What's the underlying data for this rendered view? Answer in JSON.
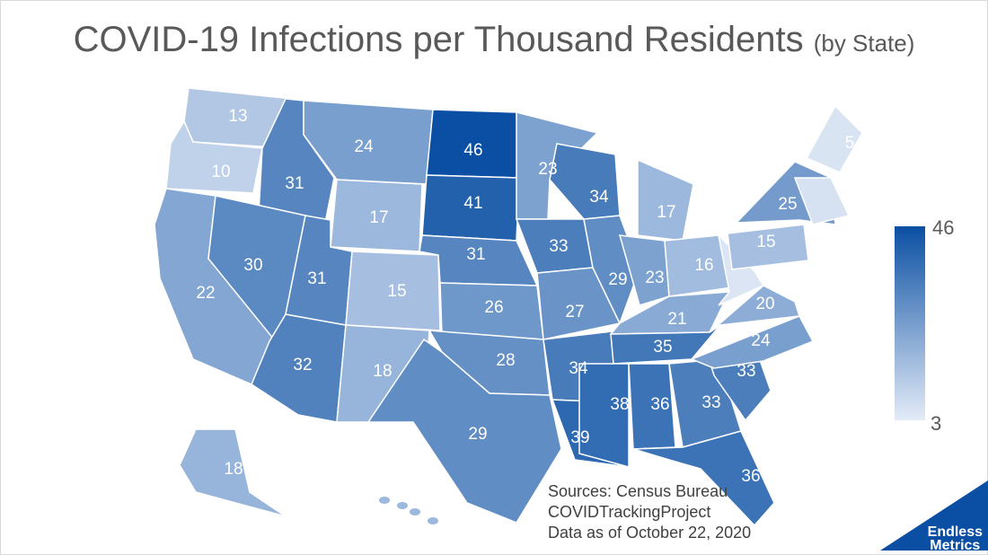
{
  "title": {
    "main": "COVID-19 Infections per Thousand Residents",
    "sub": "(by State)"
  },
  "legend": {
    "max": "46",
    "min": "3",
    "max_color": "#0a4fa3",
    "min_color": "#e3ebf7"
  },
  "sources": {
    "line1": "Sources: Census Bureau",
    "line2": "COVIDTrackingProject",
    "line3": "Data as of October 22, 2020"
  },
  "brand": {
    "line1": "Endless",
    "line2": "Metrics",
    "color": "#0a4fa3"
  },
  "chart_data": {
    "type": "choropleth",
    "title": "COVID-19 Infections per Thousand Residents (by State)",
    "unit": "infections per thousand residents",
    "scale": {
      "min": 3,
      "max": 46
    },
    "states": [
      {
        "state": "WA",
        "value": 13
      },
      {
        "state": "OR",
        "value": 10
      },
      {
        "state": "CA",
        "value": 22
      },
      {
        "state": "ID",
        "value": 31
      },
      {
        "state": "NV",
        "value": 30
      },
      {
        "state": "MT",
        "value": 24
      },
      {
        "state": "WY",
        "value": 17
      },
      {
        "state": "UT",
        "value": 31
      },
      {
        "state": "CO",
        "value": 15
      },
      {
        "state": "AZ",
        "value": 32
      },
      {
        "state": "NM",
        "value": 18
      },
      {
        "state": "ND",
        "value": 46
      },
      {
        "state": "SD",
        "value": 41
      },
      {
        "state": "NE",
        "value": 31
      },
      {
        "state": "KS",
        "value": 26
      },
      {
        "state": "OK",
        "value": 28
      },
      {
        "state": "TX",
        "value": 29
      },
      {
        "state": "MN",
        "value": 23
      },
      {
        "state": "IA",
        "value": 33
      },
      {
        "state": "MO",
        "value": 27
      },
      {
        "state": "AR",
        "value": 34
      },
      {
        "state": "LA",
        "value": 39
      },
      {
        "state": "WI",
        "value": 34
      },
      {
        "state": "IL",
        "value": 29
      },
      {
        "state": "MI",
        "value": 17
      },
      {
        "state": "IN",
        "value": 23
      },
      {
        "state": "OH",
        "value": 16
      },
      {
        "state": "KY",
        "value": 21
      },
      {
        "state": "TN",
        "value": 35
      },
      {
        "state": "MS",
        "value": 38
      },
      {
        "state": "AL",
        "value": 36
      },
      {
        "state": "GA",
        "value": 33
      },
      {
        "state": "FL",
        "value": 36
      },
      {
        "state": "SC",
        "value": 33
      },
      {
        "state": "NC",
        "value": 24
      },
      {
        "state": "VA",
        "value": 20
      },
      {
        "state": "WV",
        "value": null
      },
      {
        "state": "PA",
        "value": 15
      },
      {
        "state": "NY",
        "value": 25
      },
      {
        "state": "ME",
        "value": 5
      },
      {
        "state": "AK",
        "value": 18
      }
    ]
  }
}
